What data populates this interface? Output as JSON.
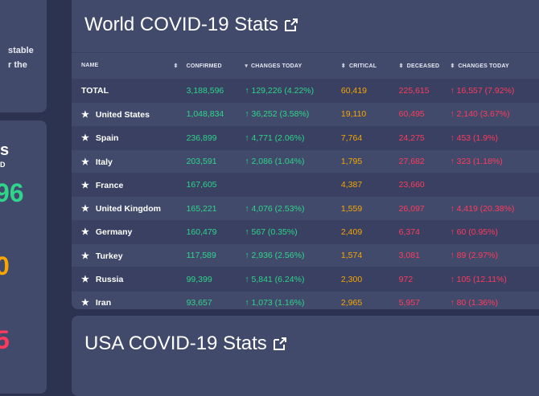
{
  "left_panel": {
    "snippet1": "stable",
    "snippet2": "r the",
    "snippet3": "s",
    "snippet4": "D",
    "big1": "96",
    "big2": "0",
    "big3": "5"
  },
  "world": {
    "title": "World COVID-19 Stats",
    "headers": [
      "NAME",
      "CONFIRMED",
      "CHANGES TODAY",
      "CRITICAL",
      "DECEASED",
      "CHANGES TODAY"
    ],
    "rows": [
      {
        "name": "TOTAL",
        "starred": false,
        "confirmed": "3,188,596",
        "change": "↑ 129,226 (4.22%)",
        "critical": "60,419",
        "deceased": "225,615",
        "dchange": "↑ 16,557 (7.92%)"
      },
      {
        "name": "United States",
        "starred": true,
        "confirmed": "1,048,834",
        "change": "↑ 36,252 (3.58%)",
        "critical": "19,110",
        "deceased": "60,495",
        "dchange": "↑ 2,140 (3.67%)"
      },
      {
        "name": "Spain",
        "starred": true,
        "confirmed": "236,899",
        "change": "↑ 4,771 (2.06%)",
        "critical": "7,764",
        "deceased": "24,275",
        "dchange": "↑ 453 (1.9%)"
      },
      {
        "name": "Italy",
        "starred": true,
        "confirmed": "203,591",
        "change": "↑ 2,086 (1.04%)",
        "critical": "1,795",
        "deceased": "27,682",
        "dchange": "↑ 323 (1.18%)"
      },
      {
        "name": "France",
        "starred": true,
        "confirmed": "167,605",
        "change": "",
        "critical": "4,387",
        "deceased": "23,660",
        "dchange": ""
      },
      {
        "name": "United Kingdom",
        "starred": true,
        "confirmed": "165,221",
        "change": "↑ 4,076 (2.53%)",
        "critical": "1,559",
        "deceased": "26,097",
        "dchange": "↑ 4,419 (20.38%)"
      },
      {
        "name": "Germany",
        "starred": true,
        "confirmed": "160,479",
        "change": "↑ 567 (0.35%)",
        "critical": "2,409",
        "deceased": "6,374",
        "dchange": "↑ 60 (0.95%)"
      },
      {
        "name": "Turkey",
        "starred": true,
        "confirmed": "117,589",
        "change": "↑ 2,936 (2.56%)",
        "critical": "1,574",
        "deceased": "3,081",
        "dchange": "↑ 89 (2.97%)"
      },
      {
        "name": "Russia",
        "starred": true,
        "confirmed": "99,399",
        "change": "↑ 5,841 (6.24%)",
        "critical": "2,300",
        "deceased": "972",
        "dchange": "↑ 105 (12.11%)"
      },
      {
        "name": "Iran",
        "starred": true,
        "confirmed": "93,657",
        "change": "↑ 1,073 (1.16%)",
        "critical": "2,965",
        "deceased": "5,957",
        "dchange": "↑ 80 (1.36%)"
      }
    ]
  },
  "usa": {
    "title": "USA COVID-19 Stats"
  },
  "colors": {
    "background": "#2c3350",
    "card": "#424a6b",
    "green": "#2ed58a",
    "orange": "#f7a600",
    "red": "#ff3a5c"
  },
  "icons": {
    "external_link": "external-link-icon",
    "star": "star-icon",
    "sort": "sort-icon"
  }
}
